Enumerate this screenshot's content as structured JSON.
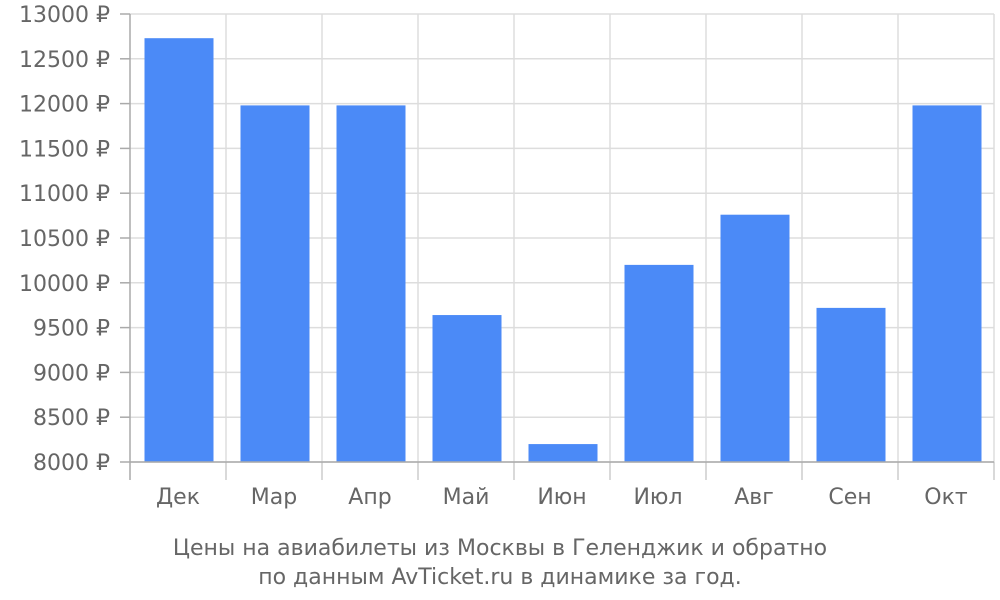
{
  "chart_data": {
    "type": "bar",
    "categories": [
      "Дек",
      "Мар",
      "Апр",
      "Май",
      "Июн",
      "Июл",
      "Авг",
      "Сен",
      "Окт"
    ],
    "values": [
      12730,
      11980,
      11980,
      9640,
      8200,
      10200,
      10760,
      9720,
      11980
    ],
    "ylim": [
      8000,
      13000
    ],
    "yticks": [
      "8000 ₽",
      "8500 ₽",
      "9000 ₽",
      "9500 ₽",
      "10000 ₽",
      "10500 ₽",
      "11000 ₽",
      "11500 ₽",
      "12000 ₽",
      "12500 ₽",
      "13000 ₽"
    ],
    "ytick_values": [
      8000,
      8500,
      9000,
      9500,
      10000,
      10500,
      11000,
      11500,
      12000,
      12500,
      13000
    ],
    "grid": true,
    "bar_color": "#4b8af7",
    "caption_lines": [
      "Цены на авиабилеты из Москвы в Геленджик и обратно",
      "по данным AvTicket.ru в динамике за год."
    ]
  }
}
